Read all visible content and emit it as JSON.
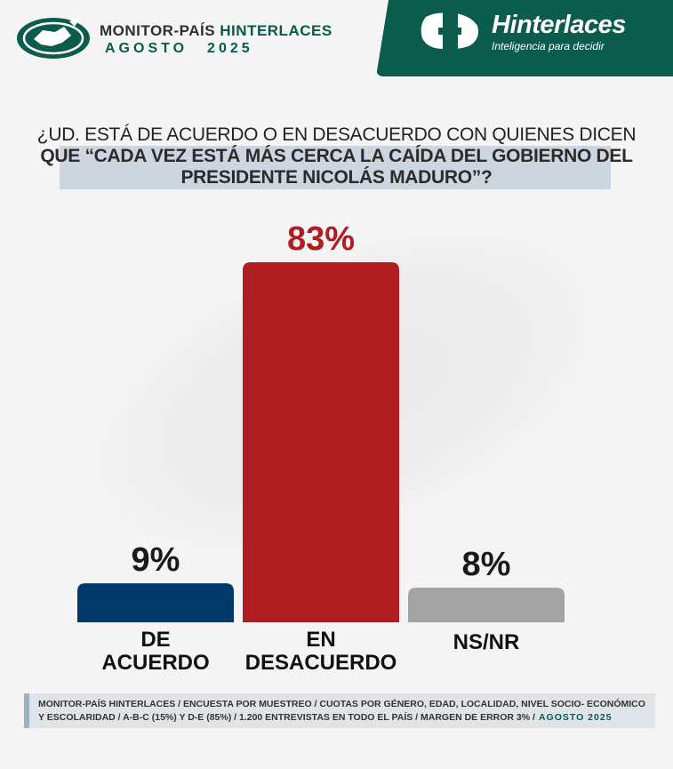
{
  "header": {
    "title_main": "MONITOR-PAÍS",
    "title_brand": "HINTERLACES",
    "title_month": "AGOSTO",
    "title_year": "2025",
    "brand_name": "Hinterlaces",
    "brand_tagline": "Inteligencia para decidir",
    "logo_icon": "venezuela-globe-icon",
    "brand_icon": "hinterlaces-h-icon"
  },
  "question": {
    "line1": "¿UD. ESTÁ DE ACUERDO O EN DESACUERDO CON QUIENES DICEN",
    "line2": "QUE “CADA VEZ ESTÁ MÁS CERCA LA CAÍDA DEL GOBIERNO DEL",
    "line3": "PRESIDENTE NICOLÁS MADURO”?"
  },
  "chart_data": {
    "type": "bar",
    "categories": [
      [
        "DE",
        "ACUERDO"
      ],
      [
        "EN",
        "DESACUERDO"
      ],
      [
        "NS/NR"
      ]
    ],
    "values": [
      9,
      83,
      8
    ],
    "value_labels": [
      "9%",
      "83%",
      "8%"
    ],
    "colors": [
      "#003a6b",
      "#b01c20",
      "#a3a3a3"
    ],
    "ylim": [
      0,
      83
    ],
    "grid": false
  },
  "footer": {
    "line1": "MONITOR-PAÍS HINTERLACES / ENCUESTA POR MUESTREO / CUOTAS POR GÉNERO, EDAD, LOCALIDAD,  NIVEL SOCIO- ECONÓMICO",
    "line2": "Y ESCOLARIDAD / A-B-C (15%) Y D-E (85%) / 1.200 ENTREVISTAS EN TODO EL PAÍS  / MARGEN DE ERROR 3% /",
    "date": "AGOSTO 2025"
  },
  "colors": {
    "brand_green": "#0b5c4c",
    "question_band": "#cdd6df",
    "footer_band": "#dfe4e9"
  }
}
